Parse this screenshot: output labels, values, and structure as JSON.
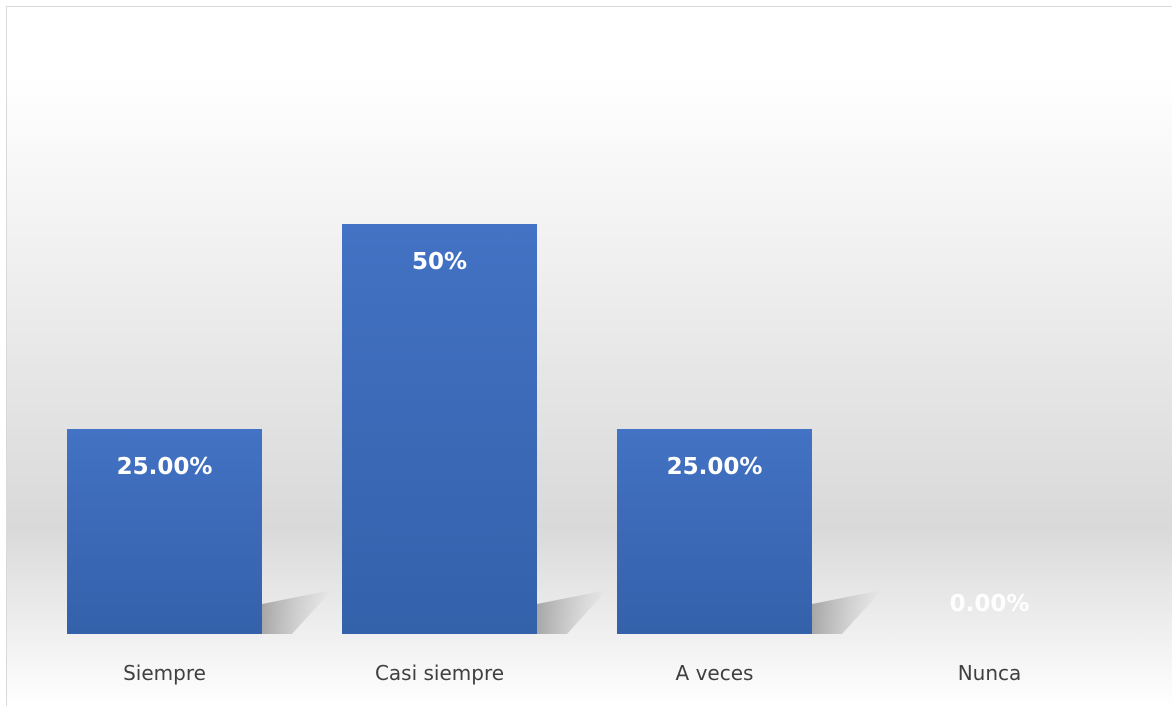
{
  "chart_data": {
    "type": "bar",
    "categories": [
      "Siempre",
      "Casi siempre",
      "A veces",
      "Nunca"
    ],
    "values": [
      25,
      50,
      25,
      0
    ],
    "data_labels": [
      "25.00%",
      "50%",
      "25.00%",
      "0.00%"
    ],
    "title": "",
    "xlabel": "",
    "ylabel": "",
    "ylim": [
      0,
      60
    ],
    "grid": false,
    "legend": "none",
    "bar_color": "#4472C4",
    "bar_color_dark": "#3361AA"
  }
}
